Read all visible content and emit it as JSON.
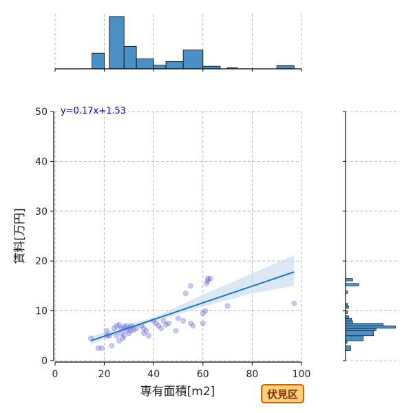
{
  "chart_data": {
    "type": "scatter",
    "xlabel": "専有面積[m2]",
    "ylabel": "賃料[万円]",
    "xlim": [
      0,
      100
    ],
    "ylim": [
      0,
      50
    ],
    "xticks": [
      0,
      20,
      40,
      60,
      80,
      100
    ],
    "yticks": [
      0,
      10,
      20,
      30,
      40,
      50
    ],
    "grid": true,
    "annotation": "y=0.17x+1.53",
    "badge": "伏見区",
    "colors": {
      "point": "#3a3ad0",
      "line": "#1f77b4",
      "band": "#c6dbef",
      "hist": "#4a90c4",
      "badge_bg": "#ffd27a",
      "badge_border": "#e05a00"
    },
    "points": [
      [
        14.5,
        4.5
      ],
      [
        17.5,
        2.5
      ],
      [
        19,
        2.5
      ],
      [
        21,
        6
      ],
      [
        21,
        5
      ],
      [
        22,
        5
      ],
      [
        23,
        3
      ],
      [
        24,
        6.5
      ],
      [
        25,
        7
      ],
      [
        25,
        5
      ],
      [
        26,
        7.2
      ],
      [
        26,
        4
      ],
      [
        27,
        6.5
      ],
      [
        27,
        5.5
      ],
      [
        27.5,
        4.5
      ],
      [
        28,
        6.8
      ],
      [
        28,
        5
      ],
      [
        29,
        6
      ],
      [
        29,
        7
      ],
      [
        30,
        6.5
      ],
      [
        30,
        5.5
      ],
      [
        31,
        7
      ],
      [
        31,
        6
      ],
      [
        32,
        6.2
      ],
      [
        33,
        6.5
      ],
      [
        35,
        7
      ],
      [
        36,
        6.5
      ],
      [
        36,
        5.5
      ],
      [
        37,
        6
      ],
      [
        38,
        5
      ],
      [
        40,
        8
      ],
      [
        41,
        7.5
      ],
      [
        42,
        7
      ],
      [
        43,
        6.5
      ],
      [
        44,
        8
      ],
      [
        45,
        7.2
      ],
      [
        46,
        7.5
      ],
      [
        49,
        6
      ],
      [
        50,
        8.5
      ],
      [
        52,
        8
      ],
      [
        53,
        13.5
      ],
      [
        55,
        15
      ],
      [
        55,
        7.5
      ],
      [
        56,
        7
      ],
      [
        60,
        7.5
      ],
      [
        60,
        9.5
      ],
      [
        61,
        10
      ],
      [
        61.5,
        15.5
      ],
      [
        62,
        16.5
      ],
      [
        62,
        16
      ],
      [
        63,
        16.5
      ],
      [
        70,
        11
      ],
      [
        97,
        11.5
      ]
    ],
    "regression": {
      "x": [
        14.5,
        97
      ],
      "y": [
        4.0,
        17.8
      ]
    },
    "band": [
      [
        14.5,
        3.2,
        4.8
      ],
      [
        30,
        6.3,
        7.3
      ],
      [
        40,
        7.8,
        8.7
      ],
      [
        60,
        10.8,
        13.2
      ],
      [
        80,
        13.5,
        17.5
      ],
      [
        97,
        15,
        21.2
      ]
    ],
    "hist_x": {
      "bins": [
        [
          15,
          20,
          0.3
        ],
        [
          22,
          28,
          1.0
        ],
        [
          28,
          33,
          0.43
        ],
        [
          33,
          40,
          0.19
        ],
        [
          40,
          45,
          0.07
        ],
        [
          45,
          52,
          0.14
        ],
        [
          52,
          60,
          0.36
        ],
        [
          60,
          67,
          0.05
        ],
        [
          67,
          71,
          0.0
        ],
        [
          70,
          74,
          0.02
        ],
        [
          90,
          97,
          0.06
        ]
      ]
    },
    "hist_y": {
      "bins": [
        [
          2,
          3,
          0.1
        ],
        [
          3.5,
          4,
          0.03
        ],
        [
          4,
          5,
          0.35
        ],
        [
          5,
          6,
          0.55
        ],
        [
          6,
          6.5,
          0.6
        ],
        [
          6.5,
          7,
          0.98
        ],
        [
          7,
          7.5,
          0.74
        ],
        [
          7.5,
          8,
          0.14
        ],
        [
          8,
          8.5,
          0.12
        ],
        [
          8.5,
          9,
          0.06
        ],
        [
          9.5,
          10,
          0.04
        ],
        [
          10.5,
          11,
          0.06
        ],
        [
          11,
          11.5,
          0.04
        ],
        [
          13.5,
          14,
          0.04
        ],
        [
          15,
          15.5,
          0.26
        ],
        [
          16,
          16.5,
          0.14
        ]
      ]
    }
  }
}
